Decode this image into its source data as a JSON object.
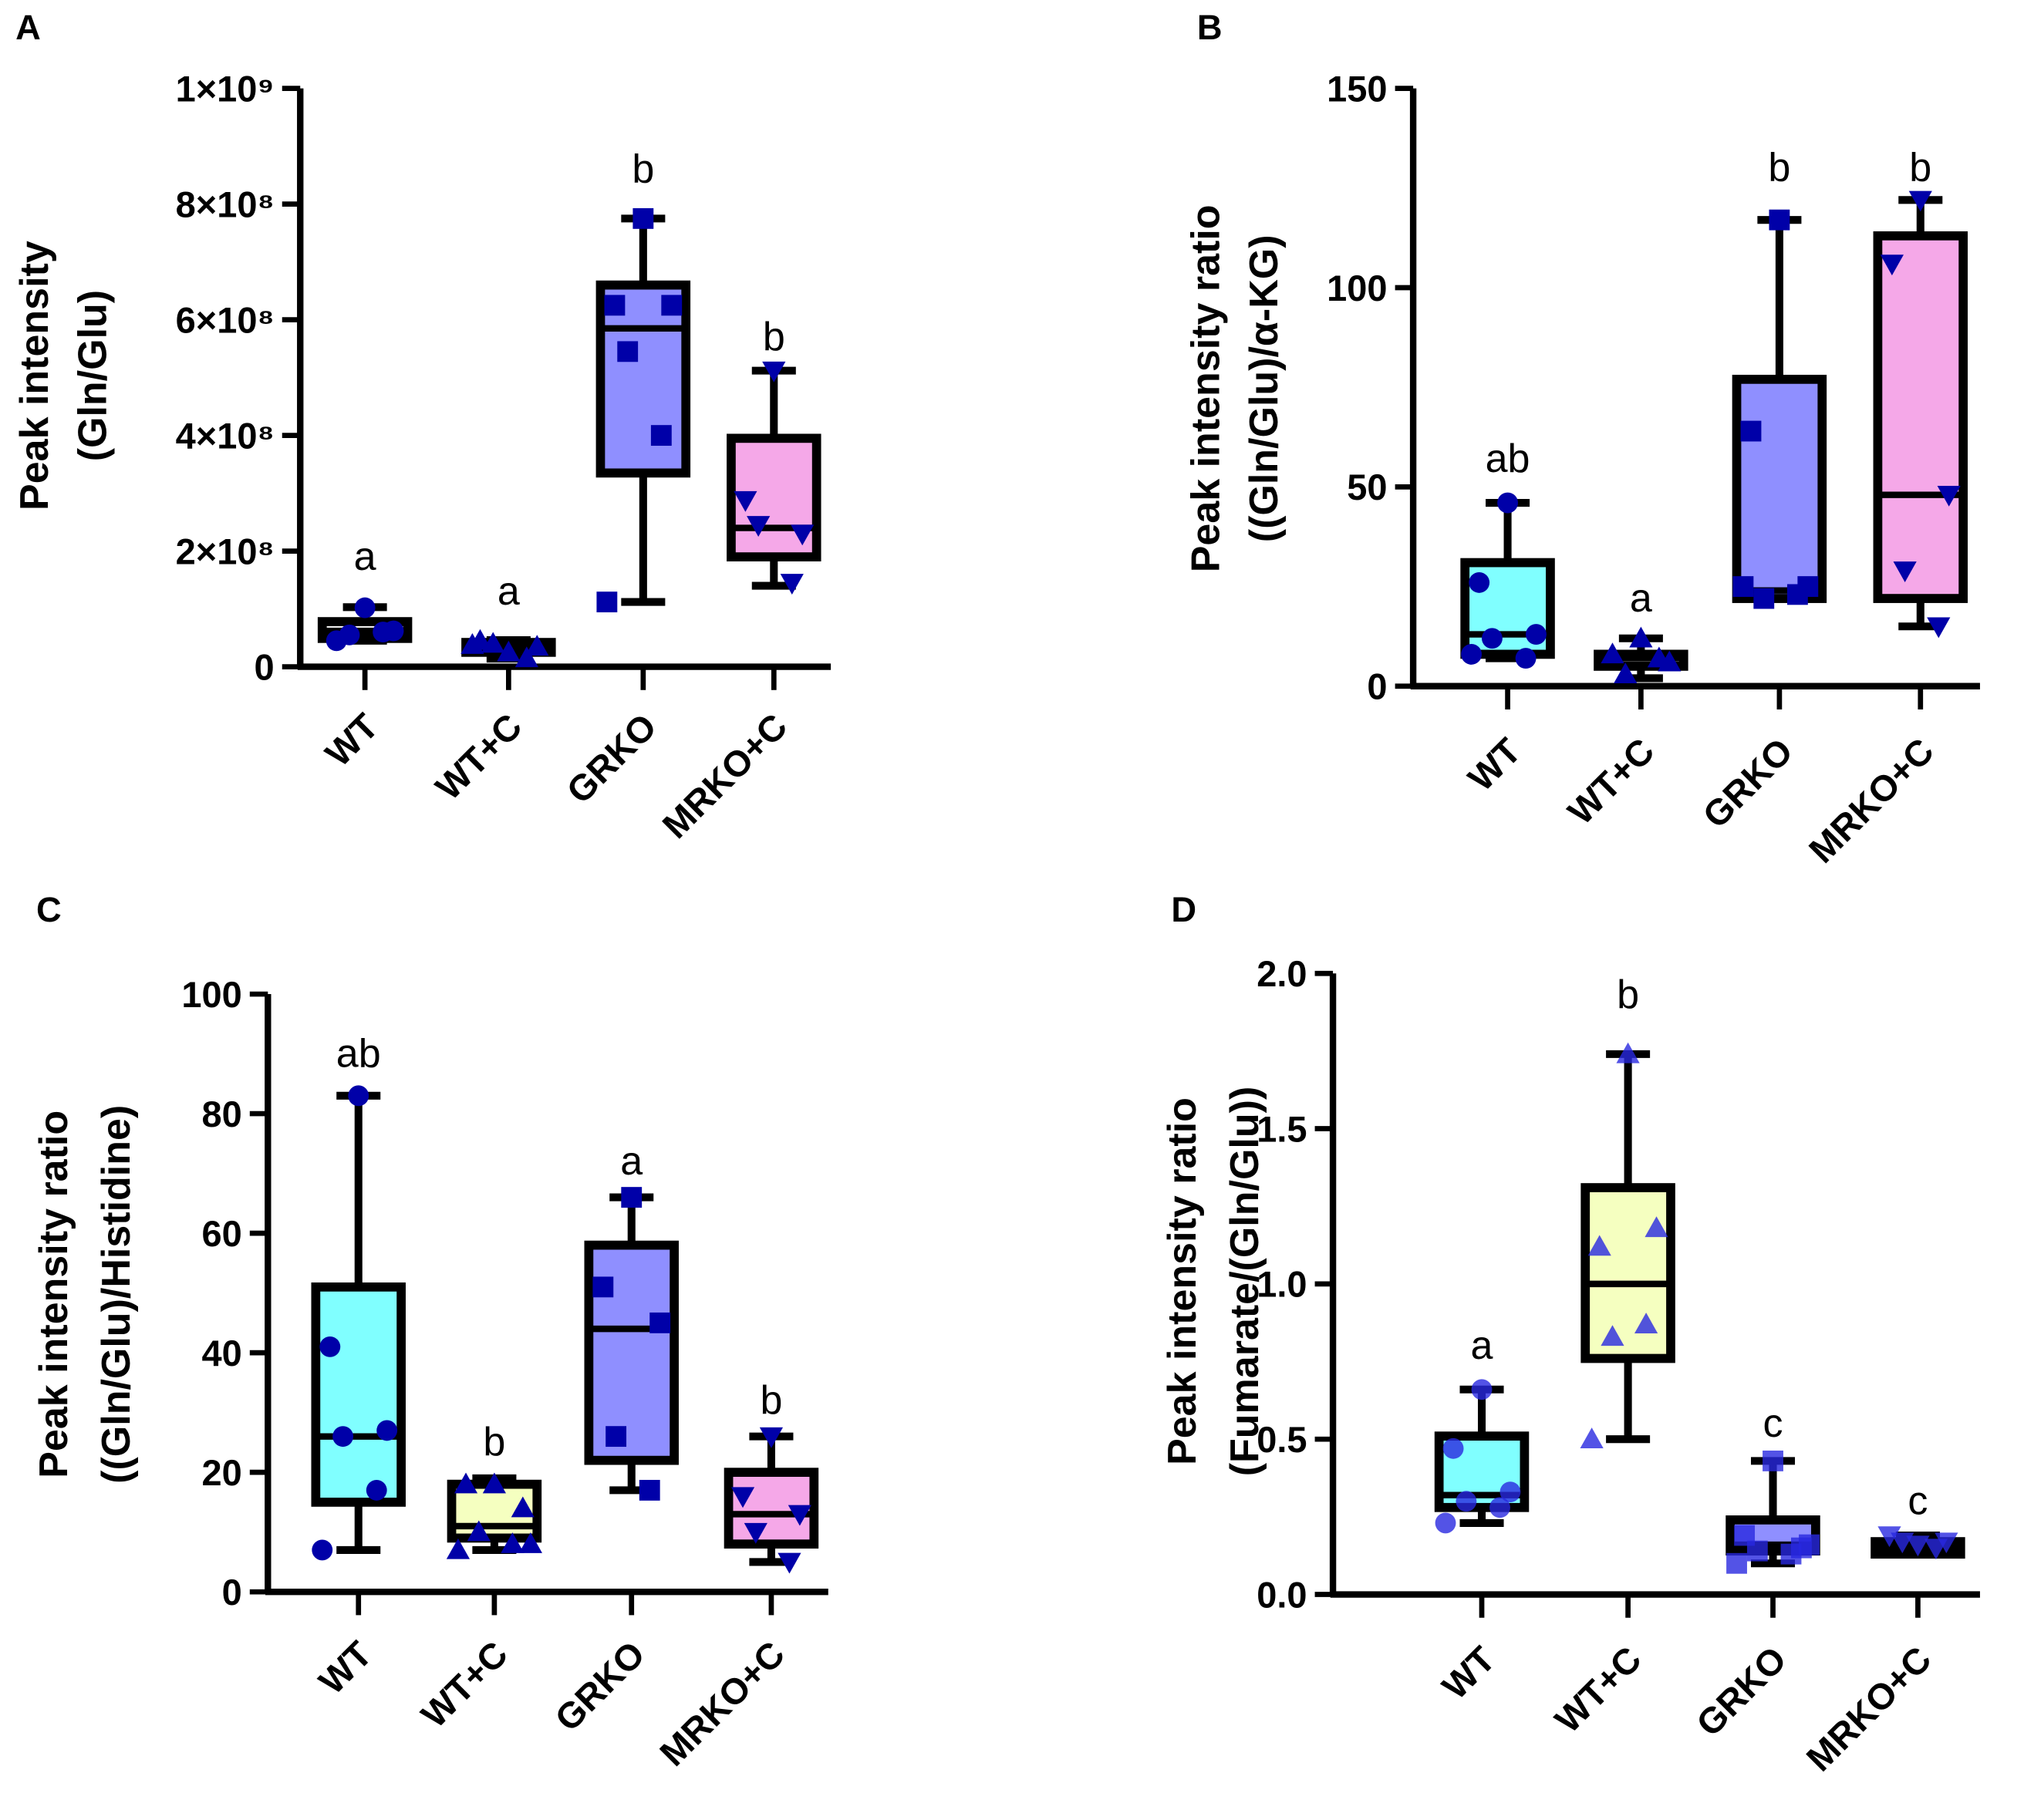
{
  "chart_data": [
    {
      "panel": "A",
      "type": "box",
      "ylabel": [
        "Peak intensity",
        "(Gln/Glu)"
      ],
      "ylim": [
        0,
        1000000000
      ],
      "ticks": [
        {
          "v": 0,
          "label": "0"
        },
        {
          "v": 200000000,
          "label": "2×10⁸"
        },
        {
          "v": 400000000,
          "label": "4×10⁸"
        },
        {
          "v": 600000000,
          "label": "6×10⁸"
        },
        {
          "v": 800000000,
          "label": "8×10⁸"
        },
        {
          "v": 1000000000,
          "label": "1×10⁹"
        }
      ],
      "categories": [
        "WT",
        "WT+C",
        "GRKO",
        "MRKO+C"
      ],
      "point_color": "#0000a8",
      "groups": [
        {
          "fill": "#ffffff",
          "marker": "circle",
          "whisker": [
            45000000,
            103000000
          ],
          "box": [
            49000000,
            78000000
          ],
          "median": 62000000,
          "points": [
            102000000,
            45000000,
            62000000,
            55000000,
            60000000
          ],
          "letter": "a",
          "letter_y": 190000000
        },
        {
          "fill": "#ffffff",
          "marker": "triangle",
          "whisker": [
            14000000,
            46000000
          ],
          "box": [
            25000000,
            42000000
          ],
          "median": 35000000,
          "points": [
            25000000,
            45000000,
            35000000,
            40000000,
            15000000,
            38000000
          ],
          "letter": "a",
          "letter_y": 130000000
        },
        {
          "fill": "#8f8fff",
          "marker": "square",
          "whisker": [
            112000000,
            775000000
          ],
          "box": [
            335000000,
            660000000
          ],
          "median": 585000000,
          "points": [
            775000000,
            625000000,
            625000000,
            545000000,
            400000000,
            112000000
          ],
          "letter": "b",
          "letter_y": 860000000
        },
        {
          "fill": "#f5a8e8",
          "marker": "triangle-down",
          "whisker": [
            140000000,
            512000000
          ],
          "box": [
            190000000,
            395000000
          ],
          "median": 240000000,
          "points": [
            512000000,
            288000000,
            230000000,
            245000000,
            145000000
          ],
          "letter": "b",
          "letter_y": 570000000
        }
      ]
    },
    {
      "panel": "B",
      "type": "box",
      "ylabel": [
        "Peak intensity ratio",
        "((Gln/Glu)/α-KG)"
      ],
      "ylim": [
        0,
        150
      ],
      "ticks": [
        {
          "v": 0,
          "label": "0"
        },
        {
          "v": 50,
          "label": "50"
        },
        {
          "v": 100,
          "label": "100"
        },
        {
          "v": 150,
          "label": "150"
        }
      ],
      "categories": [
        "WT",
        "WT+C",
        "GRKO",
        "MRKO+C"
      ],
      "point_color": "#0000a8",
      "groups": [
        {
          "fill": "#80ffff",
          "marker": "circle",
          "whisker": [
            7,
            46
          ],
          "box": [
            8,
            31
          ],
          "median": 13,
          "points": [
            46,
            26,
            13,
            12,
            7,
            8
          ],
          "letter": "ab",
          "letter_y": 57
        },
        {
          "fill": "#ffffff",
          "marker": "triangle",
          "whisker": [
            2,
            12
          ],
          "box": [
            5,
            8
          ],
          "median": 7,
          "points": [
            12,
            8,
            6,
            3,
            7
          ],
          "letter": "a",
          "letter_y": 22
        },
        {
          "fill": "#8f8fff",
          "marker": "square",
          "whisker": [
            22,
            117
          ],
          "box": [
            22,
            77
          ],
          "median": 24,
          "points": [
            117,
            64,
            25,
            22,
            23,
            25
          ],
          "letter": "b",
          "letter_y": 130
        },
        {
          "fill": "#f5a8e8",
          "marker": "triangle-down",
          "whisker": [
            15,
            122
          ],
          "box": [
            22,
            113
          ],
          "median": 48,
          "points": [
            122,
            106,
            48,
            29,
            15
          ],
          "letter": "b",
          "letter_y": 130
        }
      ]
    },
    {
      "panel": "C",
      "type": "box",
      "ylabel": [
        "Peak intensity ratio",
        "((Gln/Glu)/Histidine)"
      ],
      "ylim": [
        0,
        100
      ],
      "ticks": [
        {
          "v": 0,
          "label": "0"
        },
        {
          "v": 20,
          "label": "20"
        },
        {
          "v": 40,
          "label": "40"
        },
        {
          "v": 60,
          "label": "60"
        },
        {
          "v": 80,
          "label": "80"
        },
        {
          "v": 100,
          "label": "100"
        }
      ],
      "categories": [
        "WT",
        "WT+C",
        "GRKO",
        "MRKO+C"
      ],
      "point_color": "#0000a8",
      "groups": [
        {
          "fill": "#80ffff",
          "marker": "circle",
          "whisker": [
            7,
            83
          ],
          "box": [
            15,
            51
          ],
          "median": 26,
          "points": [
            83,
            41,
            27,
            26,
            17,
            7
          ],
          "letter": "ab",
          "letter_y": 90
        },
        {
          "fill": "#f5ffc0",
          "marker": "triangle",
          "whisker": [
            7,
            19
          ],
          "box": [
            9,
            18
          ],
          "median": 11,
          "points": [
            18,
            18,
            14,
            10,
            8,
            7,
            8
          ],
          "letter": "b",
          "letter_y": 25
        },
        {
          "fill": "#8f8fff",
          "marker": "square",
          "whisker": [
            17,
            66
          ],
          "box": [
            22,
            58
          ],
          "median": 44,
          "points": [
            66,
            51,
            45,
            26,
            17
          ],
          "letter": "a",
          "letter_y": 72
        },
        {
          "fill": "#f5a8e8",
          "marker": "triangle-down",
          "whisker": [
            5,
            26
          ],
          "box": [
            8,
            20
          ],
          "median": 13,
          "points": [
            26,
            16,
            13,
            10,
            5
          ],
          "letter": "b",
          "letter_y": 32
        }
      ]
    },
    {
      "panel": "D",
      "type": "box",
      "ylabel": [
        "Peak intensity ratio",
        "(Fumarate/(Gln/Glu))"
      ],
      "ylim": [
        0,
        2.0
      ],
      "ticks": [
        {
          "v": 0,
          "label": "0.0"
        },
        {
          "v": 0.5,
          "label": "0.5"
        },
        {
          "v": 1.0,
          "label": "1.0"
        },
        {
          "v": 1.5,
          "label": "1.5"
        },
        {
          "v": 2.0,
          "label": "2.0"
        }
      ],
      "categories": [
        "WT",
        "WT+C",
        "GRKO",
        "MRKO+C"
      ],
      "point_color": "#2828e0",
      "groups": [
        {
          "fill": "#80ffff",
          "marker": "circle",
          "whisker": [
            0.23,
            0.66
          ],
          "box": [
            0.28,
            0.51
          ],
          "median": 0.32,
          "points": [
            0.66,
            0.47,
            0.33,
            0.3,
            0.28,
            0.23
          ],
          "letter": "a",
          "letter_y": 0.8
        },
        {
          "fill": "#f5ffc0",
          "marker": "triangle",
          "whisker": [
            0.5,
            1.74
          ],
          "box": [
            0.76,
            1.31
          ],
          "median": 1.0,
          "points": [
            1.74,
            1.12,
            1.18,
            0.83,
            0.87,
            0.5
          ],
          "letter": "b",
          "letter_y": 1.93
        },
        {
          "fill": "#8f8fff",
          "marker": "square",
          "whisker": [
            0.1,
            0.43
          ],
          "box": [
            0.14,
            0.24
          ],
          "median": 0.16,
          "points": [
            0.43,
            0.19,
            0.15,
            0.14,
            0.13,
            0.1,
            0.16
          ],
          "letter": "c",
          "letter_y": 0.55
        },
        {
          "fill": "#f5a8e8",
          "marker": "triangle-down",
          "whisker": [
            0.13,
            0.19
          ],
          "box": [
            0.13,
            0.17
          ],
          "median": 0.15,
          "points": [
            0.16,
            0.19,
            0.17,
            0.17,
            0.15
          ],
          "letter": "c",
          "letter_y": 0.3
        }
      ]
    }
  ]
}
